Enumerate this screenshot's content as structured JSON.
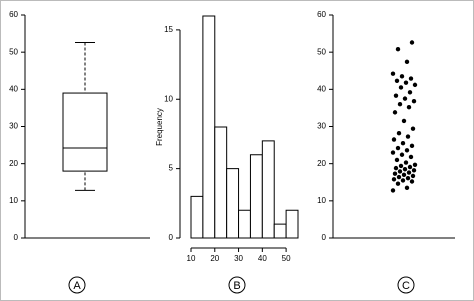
{
  "chart_data": [
    {
      "type": "box",
      "label": "A",
      "ylim": [
        0,
        60
      ],
      "yticks": [
        0,
        10,
        20,
        30,
        40,
        50,
        60
      ],
      "values": {
        "whisker_low": 12.8,
        "q1": 18,
        "median": 24.2,
        "q3": 39,
        "whisker_high": 52.6
      },
      "color": "#000000"
    },
    {
      "type": "histogram",
      "label": "B",
      "ylabel": "Frequency",
      "ylim": [
        0,
        16
      ],
      "yticks": [
        0,
        5,
        10,
        15
      ],
      "xlim": [
        10,
        55
      ],
      "xticks": [
        10,
        20,
        30,
        40,
        50
      ],
      "bins": [
        10,
        15,
        20,
        25,
        30,
        35,
        40,
        45,
        50,
        55
      ],
      "values": [
        3,
        16,
        8,
        5,
        2,
        6,
        7,
        1,
        2
      ],
      "color": "#ffffff"
    },
    {
      "type": "strip",
      "label": "C",
      "ylim": [
        0,
        60
      ],
      "yticks": [
        0,
        10,
        20,
        30,
        40,
        50,
        60
      ],
      "color": "#000000",
      "values": [
        12.8,
        13.5,
        14.6,
        15.2,
        15.5,
        15.8,
        16.1,
        16.4,
        16.7,
        17.0,
        17.3,
        17.6,
        17.9,
        18.2,
        18.5,
        18.8,
        19.1,
        19.4,
        19.7,
        20.3,
        21,
        21.8,
        22.4,
        23,
        23.6,
        24.2,
        24.8,
        25.5,
        26.5,
        27.3,
        28.2,
        29.4,
        31.5,
        33.8,
        35.2,
        36,
        36.8,
        37.5,
        38.3,
        39.2,
        40.5,
        41.2,
        41.8,
        42.3,
        42.9,
        43.5,
        44.2,
        47.4,
        50.8,
        52.6
      ]
    }
  ]
}
